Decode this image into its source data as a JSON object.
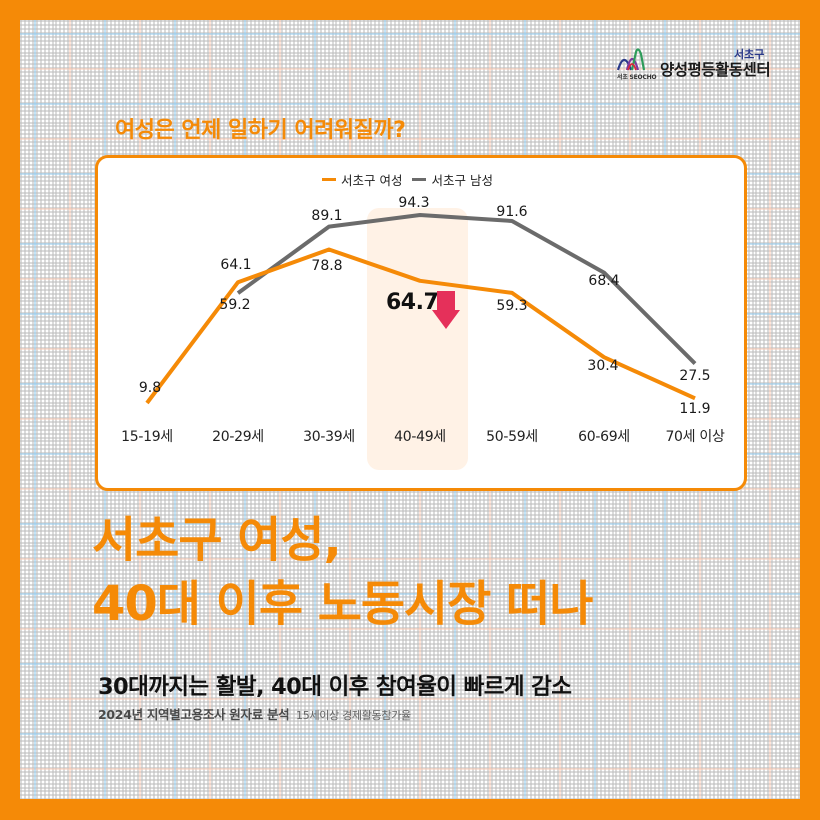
{
  "logo": {
    "district": "서초구",
    "center_name": "양성평등활동센터",
    "mark_text": "서초 SEOCHO"
  },
  "chart_heading": "여성은 언제 일하기 어려워질까?",
  "legend": {
    "female": "서초구 여성",
    "male": "서초구 남성"
  },
  "callout": {
    "value": "64.7",
    "icon": "down-arrow-icon"
  },
  "colors": {
    "brand_orange": "#f58a07",
    "male_gray": "#6b6b6b",
    "highlight": "#fff2e6",
    "arrow": "#e5305a"
  },
  "chart_data": {
    "type": "line",
    "title": "여성은 언제 일하기 어려워질까?",
    "xlabel": "",
    "ylabel": "15세이상 경제활동참가율 (%)",
    "categories": [
      "15-19세",
      "20-29세",
      "30-39세",
      "40-49세",
      "50-59세",
      "60-69세",
      "70세 이상"
    ],
    "series": [
      {
        "name": "서초구 여성",
        "color": "#f58a07",
        "values": [
          9.8,
          64.1,
          78.8,
          64.7,
          59.3,
          30.4,
          11.9
        ]
      },
      {
        "name": "서초구 남성",
        "color": "#6b6b6b",
        "values": [
          null,
          59.2,
          89.1,
          94.3,
          91.6,
          68.4,
          27.5
        ]
      }
    ],
    "value_labels": {
      "female": [
        "9.8",
        "64.1",
        "78.8",
        "64.7",
        "59.3",
        "30.4",
        "11.9"
      ],
      "male": [
        "",
        "59.2",
        "89.1",
        "94.3",
        "91.6",
        "68.4",
        "27.5"
      ]
    },
    "highlighted_category": "40-49세",
    "legend_position": "top",
    "grid": false,
    "ylim": [
      0,
      100
    ]
  },
  "headline": {
    "line1": "서초구 여성,",
    "line2": "40대 이후 노동시장 떠나"
  },
  "subhead": "30대까지는 활발, 40대 이후 참여율이 빠르게 감소",
  "source": {
    "main": "2024년 지역별고용조사 원자료 분석",
    "note": "15세이상 경제활동참가율"
  }
}
